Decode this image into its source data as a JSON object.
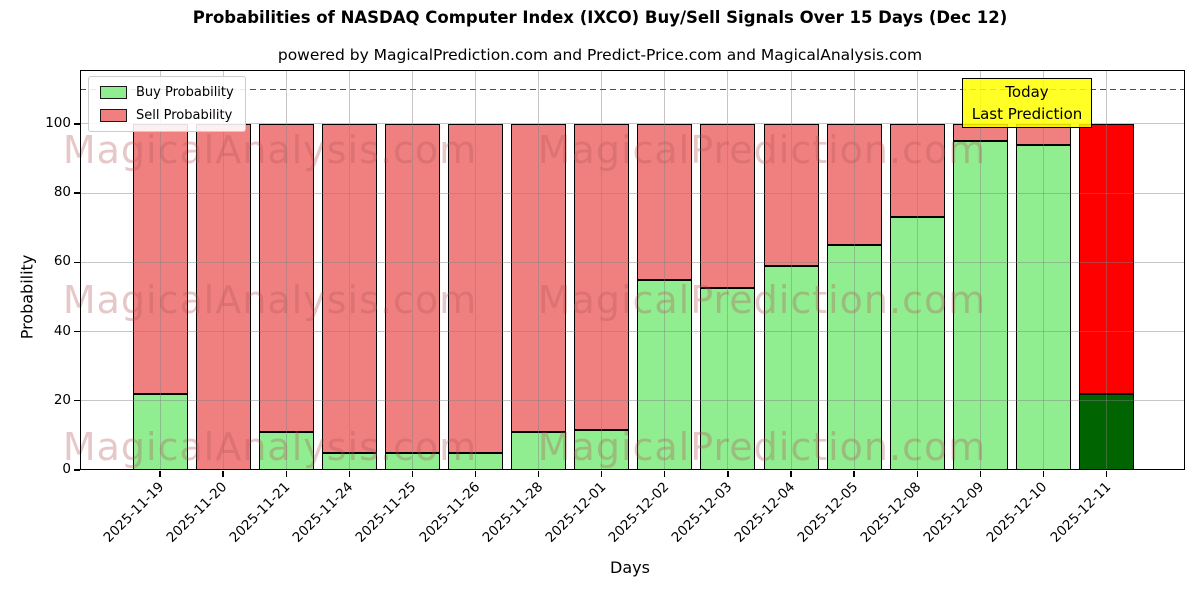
{
  "title": "Probabilities of NASDAQ Computer Index (IXCO) Buy/Sell Signals Over 15 Days (Dec 12)",
  "subtitle": "powered by MagicalPrediction.com and Predict-Price.com and MagicalAnalysis.com",
  "annotation": {
    "line1": "Today",
    "line2": "Last Prediction"
  },
  "legend": {
    "buy": "Buy Probability",
    "sell": "Sell Probability"
  },
  "watermarks": {
    "left": "MagicalAnalysis.com",
    "right": "MagicalPrediction.com"
  },
  "colors": {
    "buy": "#90EE90",
    "sell": "#F08080",
    "buy_today": "#006400",
    "sell_today": "#FF0000",
    "annotation_bg": "rgba(255,255,0,0.85)",
    "grid": "rgba(128,128,128,0.45)",
    "dashed_line": "#4d4d4d",
    "bar_edge": "#000000"
  },
  "chart_data": {
    "type": "bar",
    "stacked": true,
    "title": "Probabilities of NASDAQ Computer Index (IXCO) Buy/Sell Signals Over 15 Days (Dec 12)",
    "xlabel": "Days",
    "ylabel": "Probability",
    "categories": [
      "2025-11-19",
      "2025-11-20",
      "2025-11-21",
      "2025-11-24",
      "2025-11-25",
      "2025-11-26",
      "2025-11-28",
      "2025-12-01",
      "2025-12-02",
      "2025-12-03",
      "2025-12-04",
      "2025-12-05",
      "2025-12-08",
      "2025-12-09",
      "2025-12-10",
      "2025-12-11"
    ],
    "series": [
      {
        "name": "Buy Probability",
        "values": [
          22,
          0,
          11,
          5,
          5,
          5,
          11,
          11.5,
          55,
          52.5,
          59,
          65,
          73,
          95,
          94,
          22
        ]
      },
      {
        "name": "Sell Probability",
        "values": [
          78,
          100,
          89,
          95,
          95,
          95,
          89,
          88.5,
          45,
          47.5,
          41,
          35,
          27,
          5,
          6,
          78
        ]
      }
    ],
    "yticks": [
      0,
      20,
      40,
      60,
      80,
      100
    ],
    "ylim": [
      0,
      115.6
    ],
    "dashed_line_y": 110,
    "grid": true,
    "legend_position": "upper left",
    "highlight_last_bar": true,
    "highlight_note": "Last bar (2025-12-11) drawn in darkgreen/red as Today's Last Prediction"
  }
}
